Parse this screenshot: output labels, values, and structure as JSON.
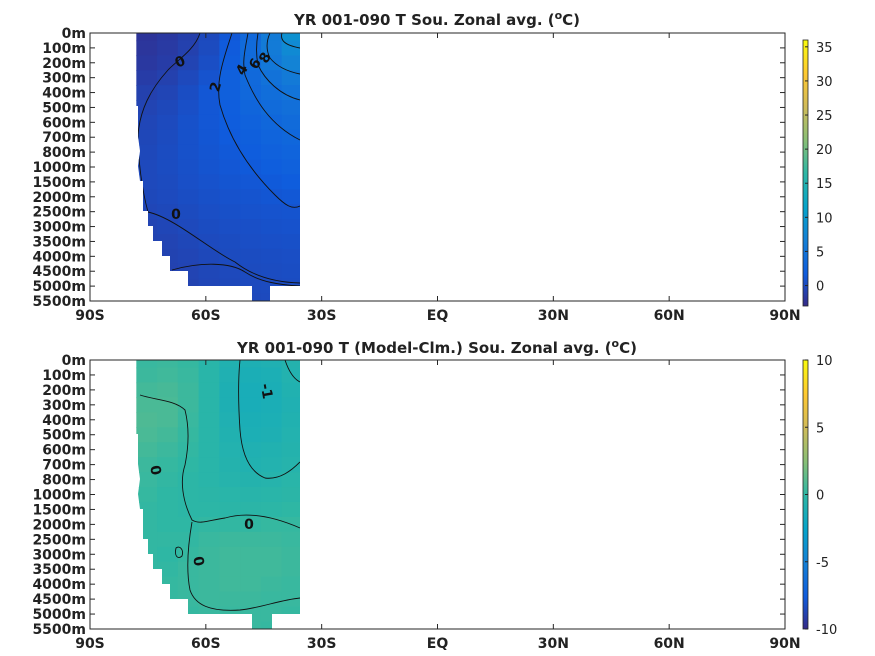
{
  "chart_data": [
    {
      "type": "heatmap",
      "title": "YR 001-090 T Sou. Zonal avg. (",
      "title_sup": "o",
      "title_end": "C)",
      "x_ticks": [
        "90S",
        "60S",
        "30S",
        "EQ",
        "30N",
        "60N",
        "90N"
      ],
      "xlim": [
        -90,
        90
      ],
      "y_ticks": [
        "0m",
        "100m",
        "200m",
        "300m",
        "400m",
        "500m",
        "600m",
        "700m",
        "800m",
        "1000m",
        "1500m",
        "2000m",
        "2500m",
        "3000m",
        "3500m",
        "4000m",
        "4500m",
        "5000m",
        "5500m"
      ],
      "colorbar": {
        "ticks": [
          0,
          5,
          10,
          15,
          20,
          25,
          30,
          35
        ],
        "range": [
          -3,
          36
        ],
        "colormap": "parula"
      },
      "data_extent_lat": [
        -78,
        -35
      ],
      "contour_labels": [
        "0",
        "2",
        "4",
        "6",
        "8",
        "0"
      ],
      "values_lat": [
        -78,
        -72,
        -66,
        -60,
        -54,
        -48,
        -42,
        -36
      ],
      "values": [
        [
          -2,
          -1.6,
          -1.0,
          0.0,
          1.5,
          3.5,
          6.0,
          9.0
        ],
        [
          -1.8,
          -1.4,
          -0.8,
          0.2,
          1.8,
          3.8,
          6.0,
          8.0
        ],
        [
          -1.6,
          -1.2,
          -0.5,
          0.5,
          2.0,
          3.8,
          5.5,
          7.0
        ],
        [
          -1.2,
          -0.8,
          0.0,
          1.0,
          2.4,
          3.6,
          4.8,
          5.8
        ],
        [
          -0.8,
          -0.4,
          0.4,
          1.4,
          2.4,
          3.4,
          4.2,
          5.0
        ],
        [
          -0.5,
          -0.1,
          0.6,
          1.4,
          2.2,
          3.0,
          3.8,
          4.4
        ],
        [
          -0.3,
          0.1,
          0.8,
          1.4,
          2.0,
          2.7,
          3.3,
          3.8
        ],
        [
          -0.2,
          0.2,
          0.8,
          1.3,
          1.8,
          2.3,
          2.9,
          3.3
        ],
        [
          -0.1,
          0.3,
          0.8,
          1.2,
          1.6,
          2.0,
          2.5,
          2.9
        ],
        [
          0.0,
          0.3,
          0.7,
          1.1,
          1.4,
          1.7,
          2.1,
          2.5
        ],
        [
          0.0,
          0.2,
          0.6,
          0.9,
          1.2,
          1.4,
          1.7,
          2.0
        ],
        [
          -0.1,
          0.1,
          0.4,
          0.7,
          0.9,
          1.1,
          1.3,
          1.5
        ],
        [
          -0.3,
          -0.1,
          0.2,
          0.5,
          0.7,
          0.9,
          1.0,
          1.1
        ],
        [
          -0.5,
          -0.3,
          0.0,
          0.3,
          0.5,
          0.6,
          0.8,
          0.9
        ],
        [
          -0.6,
          -0.5,
          -0.2,
          0.1,
          0.3,
          0.5,
          0.6,
          0.7
        ],
        [
          -0.7,
          -0.6,
          -0.4,
          -0.1,
          0.2,
          0.3,
          0.4,
          0.5
        ],
        [
          -0.8,
          -0.7,
          -0.5,
          -0.2,
          0.0,
          0.2,
          0.3,
          0.4
        ],
        [
          -0.8,
          -0.8,
          -0.6,
          -0.3,
          -0.1,
          0.1,
          0.2,
          0.3
        ],
        [
          -0.9,
          -0.9,
          -0.7,
          -0.4,
          -0.2,
          0.0,
          0.1,
          0.2
        ]
      ]
    },
    {
      "type": "heatmap",
      "title": "YR 001-090 T (Model-Clm.) Sou. Zonal avg. (",
      "title_sup": "o",
      "title_end": "C)",
      "x_ticks": [
        "90S",
        "60S",
        "30S",
        "EQ",
        "30N",
        "60N",
        "90N"
      ],
      "xlim": [
        -90,
        90
      ],
      "y_ticks": [
        "0m",
        "100m",
        "200m",
        "300m",
        "400m",
        "500m",
        "600m",
        "700m",
        "800m",
        "1000m",
        "1500m",
        "2000m",
        "2500m",
        "3000m",
        "3500m",
        "4000m",
        "4500m",
        "5000m",
        "5500m"
      ],
      "colorbar": {
        "ticks": [
          -10,
          -5,
          0,
          5,
          10
        ],
        "range": [
          -10,
          10
        ],
        "colormap": "parula"
      },
      "data_extent_lat": [
        -78,
        -35
      ],
      "contour_labels": [
        "-1",
        "0",
        "0",
        "0"
      ],
      "values_lat": [
        -78,
        -72,
        -66,
        -60,
        -54,
        -48,
        -42,
        -36
      ],
      "values": [
        [
          0.3,
          0.4,
          0.2,
          -0.3,
          -0.8,
          -1.0,
          -0.9,
          -0.6
        ],
        [
          0.4,
          0.5,
          0.3,
          -0.3,
          -0.9,
          -1.2,
          -1.1,
          -0.7
        ],
        [
          0.6,
          0.7,
          0.4,
          -0.3,
          -1.0,
          -1.3,
          -1.2,
          -0.8
        ],
        [
          0.8,
          0.8,
          0.4,
          -0.3,
          -1.0,
          -1.3,
          -1.2,
          -0.9
        ],
        [
          0.9,
          0.8,
          0.3,
          -0.3,
          -0.9,
          -1.2,
          -1.1,
          -0.8
        ],
        [
          0.8,
          0.6,
          0.2,
          -0.3,
          -0.8,
          -1.1,
          -1.0,
          -0.7
        ],
        [
          0.6,
          0.4,
          0.1,
          -0.3,
          -0.7,
          -0.9,
          -0.8,
          -0.6
        ],
        [
          0.4,
          0.2,
          0.0,
          -0.3,
          -0.6,
          -0.8,
          -0.7,
          -0.5
        ],
        [
          0.3,
          0.1,
          -0.1,
          -0.3,
          -0.5,
          -0.6,
          -0.5,
          -0.3
        ],
        [
          0.2,
          0.0,
          -0.1,
          -0.2,
          -0.3,
          -0.4,
          -0.3,
          -0.2
        ],
        [
          0.1,
          0.0,
          -0.1,
          -0.1,
          -0.2,
          -0.2,
          -0.1,
          0.0
        ],
        [
          0.1,
          0.0,
          0.0,
          0.1,
          0.1,
          0.1,
          0.2,
          0.2
        ],
        [
          0.1,
          0.1,
          0.1,
          0.3,
          0.4,
          0.4,
          0.4,
          0.3
        ],
        [
          0.1,
          0.0,
          0.2,
          0.4,
          0.5,
          0.5,
          0.5,
          0.4
        ],
        [
          0.1,
          0.1,
          0.3,
          0.4,
          0.5,
          0.5,
          0.5,
          0.4
        ],
        [
          0.1,
          0.2,
          0.3,
          0.4,
          0.5,
          0.5,
          0.4,
          0.3
        ],
        [
          0.1,
          0.2,
          0.3,
          0.4,
          0.4,
          0.4,
          0.3,
          0.3
        ],
        [
          0.1,
          0.2,
          0.2,
          0.3,
          0.3,
          0.3,
          0.3,
          0.2
        ],
        [
          0.1,
          0.1,
          0.2,
          0.2,
          0.3,
          0.3,
          0.2,
          0.2
        ]
      ]
    }
  ]
}
